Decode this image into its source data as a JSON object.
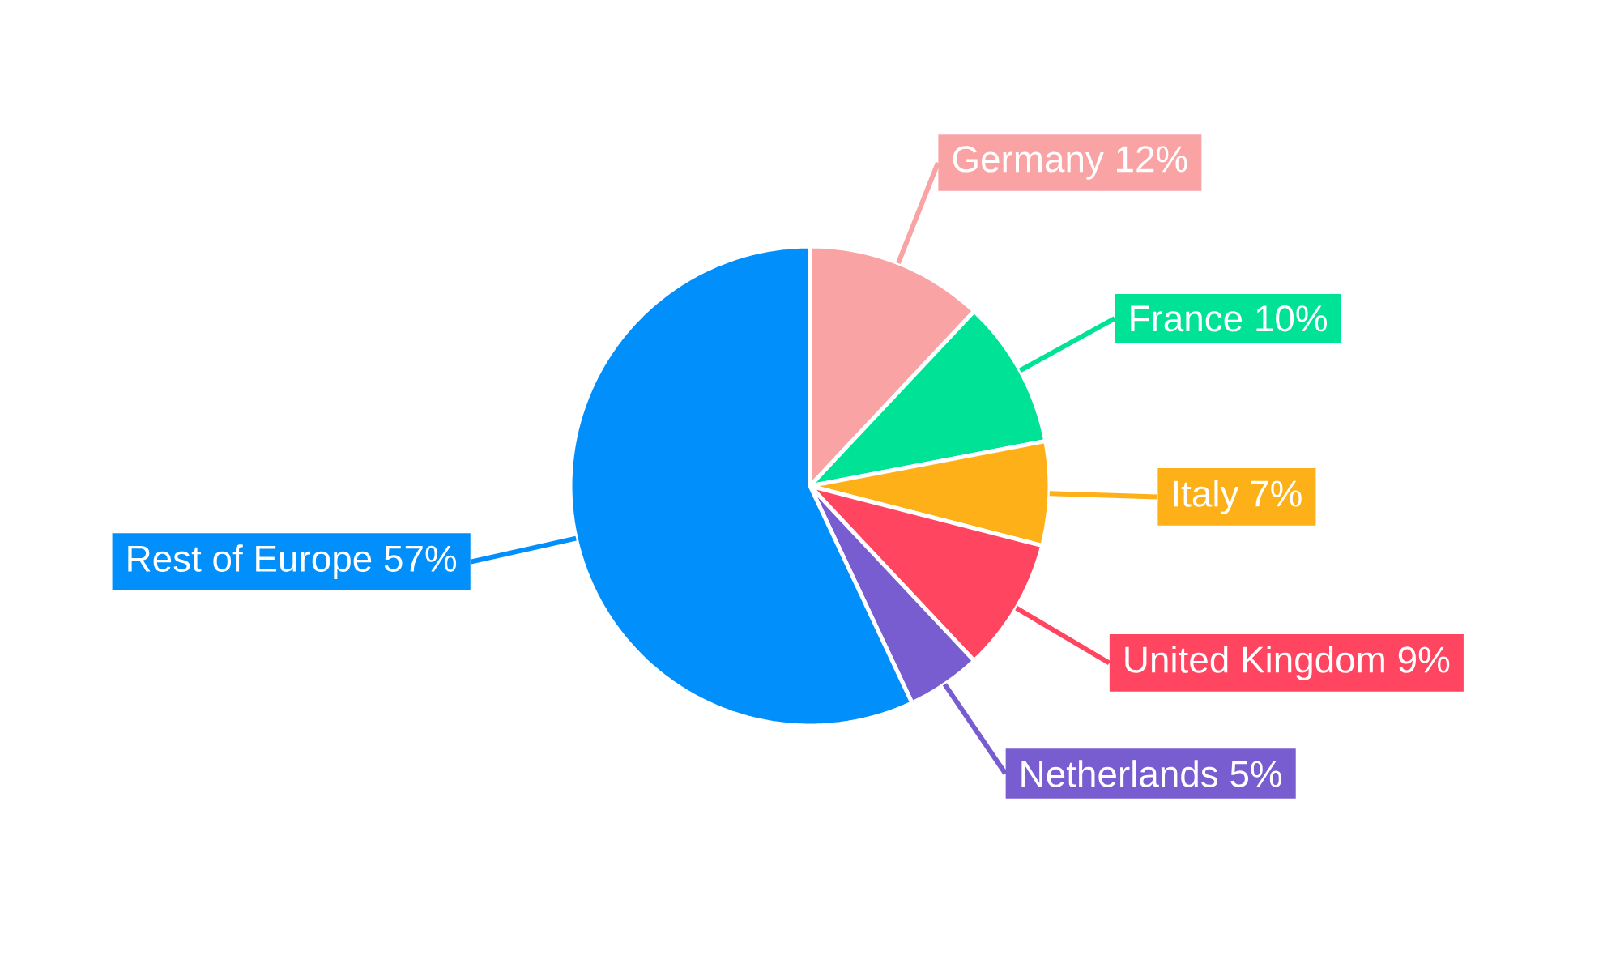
{
  "chart_data": {
    "type": "pie",
    "categories": [
      "Germany",
      "France",
      "Italy",
      "United Kingdom",
      "Netherlands",
      "Rest of Europe"
    ],
    "values": [
      12,
      10,
      7,
      9,
      5,
      57
    ],
    "colors": [
      "#f9a3a4",
      "#00e396",
      "#feb019",
      "#ff4560",
      "#775dd0",
      "#008ffb"
    ],
    "value_labels": [
      "12%",
      "10%",
      "7%",
      "9%",
      "5%",
      "57%"
    ]
  }
}
